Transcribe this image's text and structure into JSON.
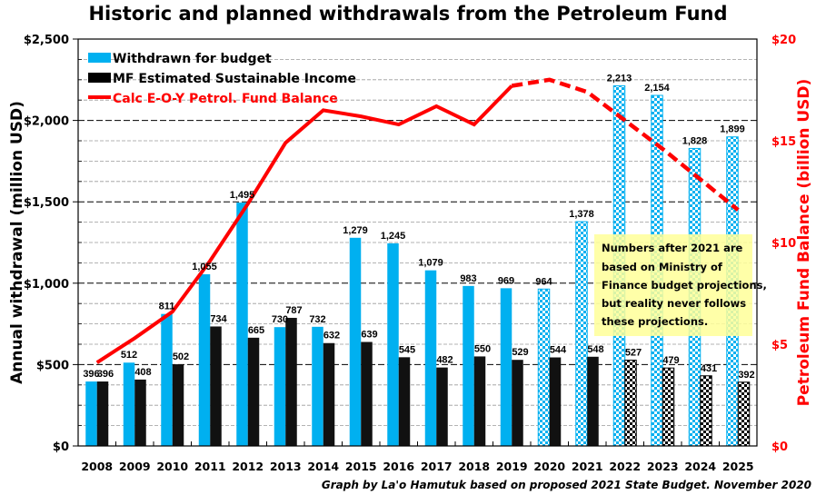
{
  "chart_data": {
    "type": "bar",
    "title": "Historic and planned withdrawals from the Petroleum Fund",
    "xlabel": "",
    "ylabel": "Annual withdrawal (million USD)",
    "y2label": "Petroleum Fund Balance (billion USD)",
    "ylim": [
      0,
      2500
    ],
    "y2lim": [
      0,
      20
    ],
    "yticks": [
      "$0",
      "$500",
      "$1,000",
      "$1,500",
      "$2,000",
      "$2,500"
    ],
    "y2ticks": [
      "$0",
      "$5",
      "$10",
      "$15",
      "$20"
    ],
    "grid": true,
    "legend_position": "top-left",
    "categories": [
      "2008",
      "2009",
      "2010",
      "2011",
      "2012",
      "2013",
      "2014",
      "2015",
      "2016",
      "2017",
      "2018",
      "2019",
      "2020",
      "2021",
      "2022",
      "2023",
      "2024",
      "2025"
    ],
    "projection_start_index": 12,
    "series": [
      {
        "name": "Withdrawn for budget",
        "kind": "bar",
        "axis": "left",
        "color": "#00b0f0",
        "values": [
          396,
          512,
          811,
          1055,
          1495,
          730,
          732,
          1279,
          1245,
          1079,
          983,
          969,
          964,
          1378,
          2213,
          2154,
          1828,
          1899
        ],
        "labels": [
          "396",
          "512",
          "811",
          "1,055",
          "1,495",
          "730",
          "732",
          "1,279",
          "1,245",
          "1,079",
          "983",
          "969",
          "964",
          "1,378",
          "2,213",
          "2,154",
          "1,828",
          "1,899"
        ],
        "patterned_from_index": 12
      },
      {
        "name": "MF Estimated Sustainable Income",
        "kind": "bar",
        "axis": "left",
        "color": "#000000",
        "values": [
          396,
          408,
          502,
          734,
          665,
          787,
          632,
          639,
          545,
          482,
          550,
          529,
          544,
          548,
          527,
          479,
          431,
          392
        ],
        "labels": [
          "396",
          "408",
          "502",
          "734",
          "665",
          "787",
          "632",
          "639",
          "545",
          "482",
          "550",
          "529",
          "544",
          "548",
          "527",
          "479",
          "431",
          "392"
        ],
        "patterned_from_index": 14
      },
      {
        "name": "Calc E-O-Y Petrol. Fund Balance",
        "kind": "line",
        "axis": "right",
        "color": "#ff0000",
        "values": [
          4.1,
          5.3,
          6.6,
          9.1,
          11.9,
          14.9,
          16.5,
          16.2,
          15.8,
          16.7,
          15.8,
          17.7,
          18.0,
          17.4,
          16.0,
          14.6,
          13.1,
          11.6
        ],
        "dashed_from_index": 11
      }
    ],
    "annotation": [
      "Numbers after 2021 are",
      "based on Ministry of",
      "Finance budget projections,",
      "but reality never follows",
      "these projections."
    ],
    "annotation_color": "#ffff99",
    "credit": "Graph by La'o Hamutuk based on proposed  2021 State Budget.  November 2020"
  }
}
